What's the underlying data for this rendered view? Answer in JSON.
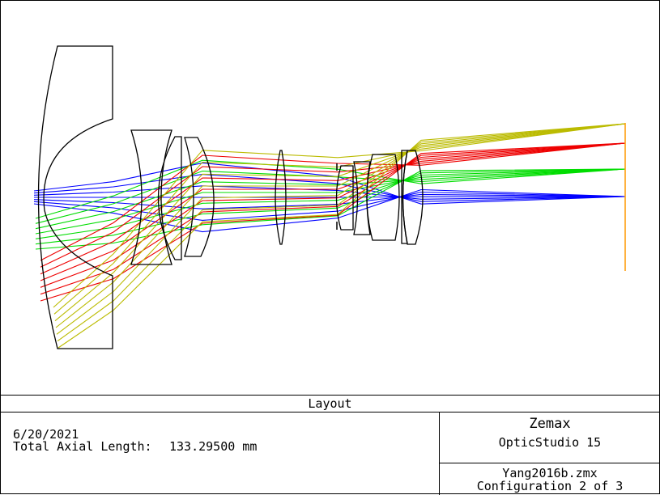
{
  "layout_title": "Layout",
  "date": "6/20/2021",
  "axial_length_label": "Total Axial Length:",
  "axial_length_value": "133.29500 mm",
  "company": "Zemax",
  "product": "OpticStudio 15",
  "filename": "Yang2016b.zmx",
  "configuration": "Configuration 2 of 3",
  "colors": {
    "field_1": "#0000ff",
    "field_2": "#00dd00",
    "field_3": "#ee0000",
    "field_4": "#bbbb00",
    "image_plane": "#ff9900",
    "lens_outline": "#000000"
  },
  "ray_fields": [
    "field-1-axial",
    "field-2",
    "field-3",
    "field-4-edge"
  ]
}
